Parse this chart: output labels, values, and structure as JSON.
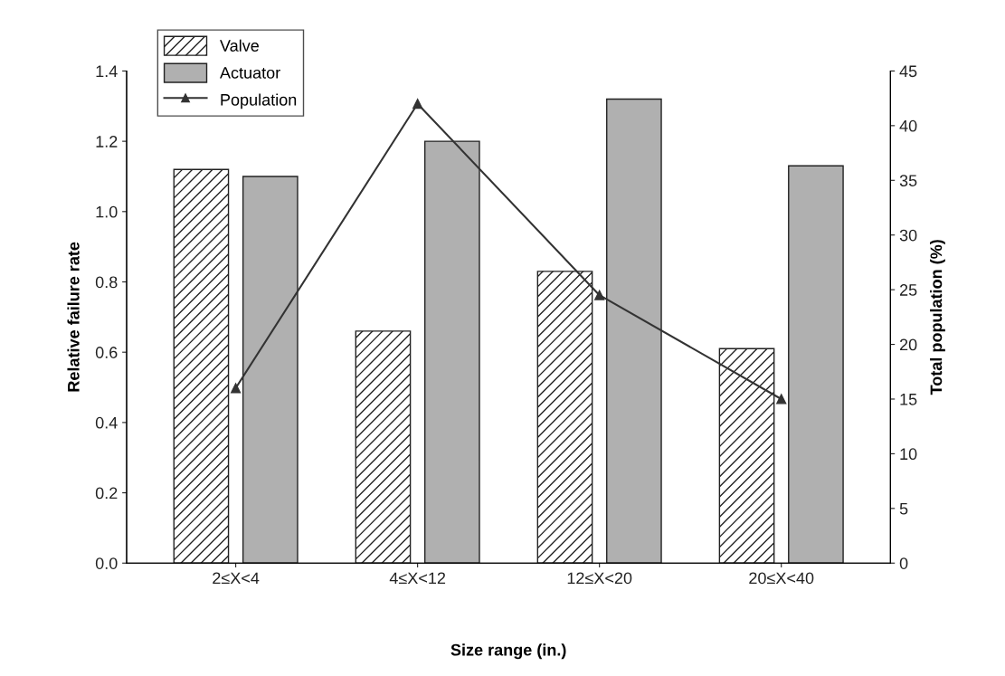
{
  "chart_data": {
    "type": "bar",
    "xlabel": "Size range (in.)",
    "ylabel": "Relative failure rate",
    "y2label": "Total population (%)",
    "categories": [
      "2≤X<4",
      "4≤X<12",
      "12≤X<20",
      "20≤X<40"
    ],
    "series": [
      {
        "name": "Valve",
        "color": "#222222",
        "values": [
          1.12,
          0.66,
          0.83,
          0.61
        ]
      },
      {
        "name": "Actuator",
        "color": "#b0b0b0",
        "values": [
          1.1,
          1.2,
          1.32,
          1.13
        ]
      },
      {
        "name": "Population",
        "type": "line",
        "axis": "y2",
        "color": "#333333",
        "values": [
          16.0,
          42.0,
          24.5,
          15.0
        ]
      }
    ],
    "ylim": [
      0,
      1.4
    ],
    "yticks": [
      {
        "value": 0,
        "label": "0.0"
      },
      0.2,
      0.4,
      0.6,
      0.8,
      {
        "value": 1,
        "label": "1.0"
      },
      1.2,
      1.4
    ],
    "y2lim": [
      0,
      45
    ],
    "y2ticks": [
      0,
      5,
      10,
      15,
      20,
      25,
      30,
      35,
      40,
      45
    ],
    "marker": "triangle",
    "line_style": "solid",
    "legend": "top left",
    "grid": false
  }
}
